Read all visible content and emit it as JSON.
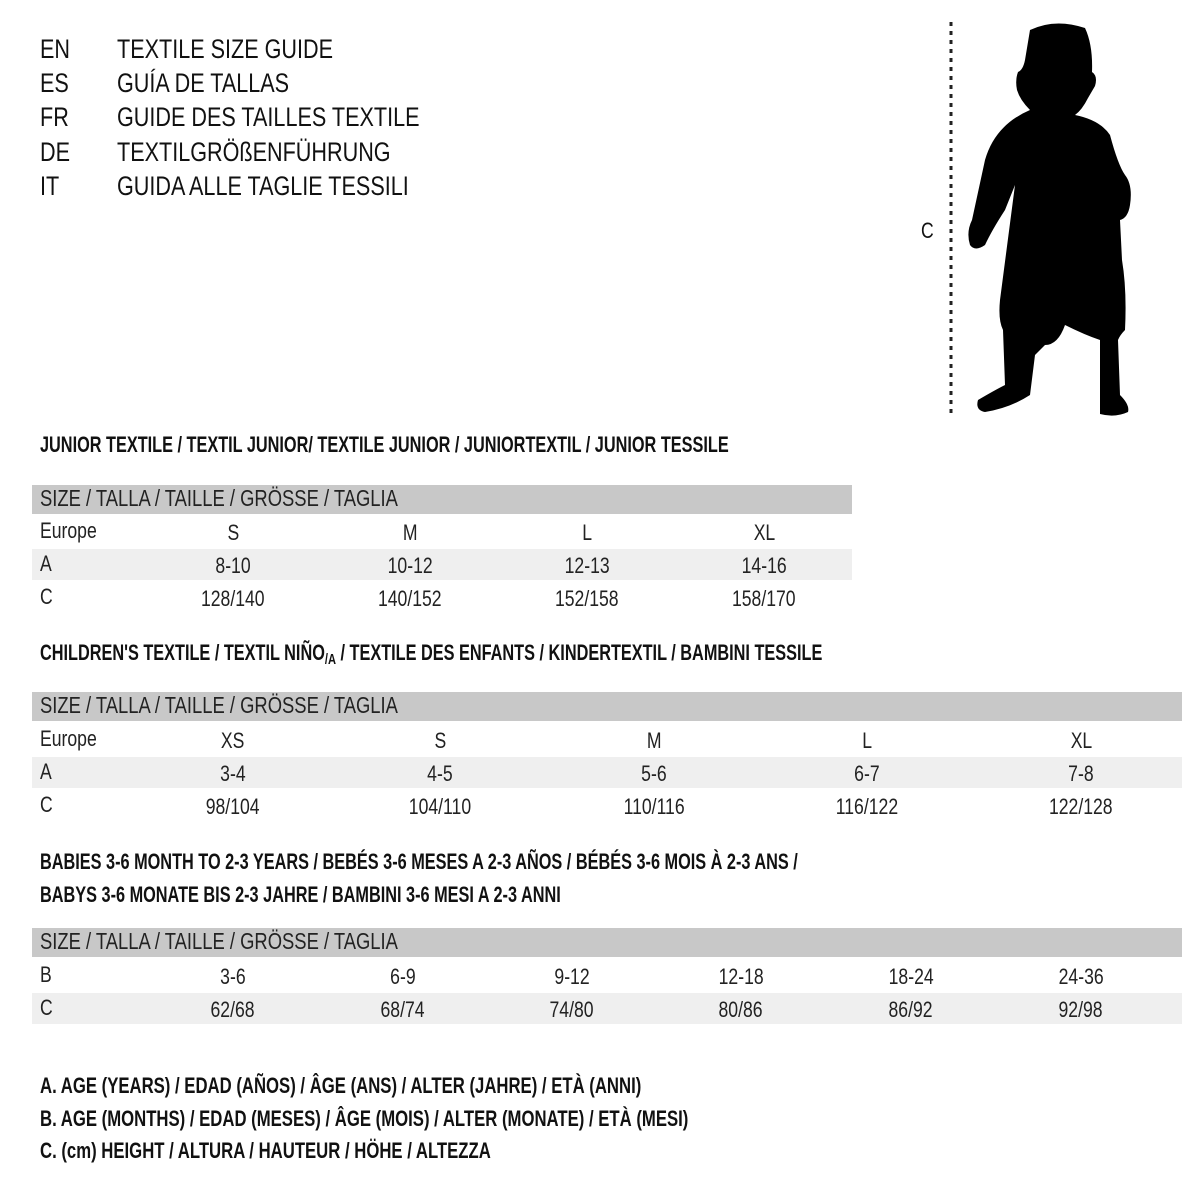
{
  "languages": [
    {
      "code": "EN",
      "title": "TEXTILE SIZE GUIDE"
    },
    {
      "code": "ES",
      "title": "GUÍA DE TALLAS"
    },
    {
      "code": "FR",
      "title": "GUIDE DES TAILLES TEXTILE"
    },
    {
      "code": "DE",
      "title": "TEXTILGRÖßENFÜHRUNG"
    },
    {
      "code": "IT",
      "title": "GUIDA ALLE TAGLIE TESSILI"
    }
  ],
  "figure": {
    "measure_label": "C",
    "icon": "child-silhouette"
  },
  "sections": [
    {
      "heading": "JUNIOR TEXTILE / TEXTIL JUNIOR/ TEXTILE JUNIOR / JUNIORTEXTIL / JUNIOR TESSILE",
      "header": "SIZE / TALLA / TAILLE / GRÖSSE / TAGLIA",
      "rows": [
        {
          "label": "Europe",
          "values": [
            "S",
            "M",
            "L",
            "XL"
          ]
        },
        {
          "label": "A",
          "values": [
            "8-10",
            "10-12",
            "12-13",
            "14-16"
          ]
        },
        {
          "label": "C",
          "values": [
            "128/140",
            "140/152",
            "152/158",
            "158/170"
          ]
        }
      ]
    },
    {
      "heading_main": "CHILDREN'S TEXTILE / TEXTIL NIÑO",
      "heading_sub": "/A",
      "heading_rest": " / TEXTILE DES ENFANTS / KINDERTEXTIL / BAMBINI TESSILE",
      "header": "SIZE / TALLA / TAILLE / GRÖSSE / TAGLIA",
      "rows": [
        {
          "label": "Europe",
          "values": [
            "XS",
            "S",
            "M",
            "L",
            "XL"
          ]
        },
        {
          "label": "A",
          "values": [
            "3-4",
            "4-5",
            "5-6",
            "6-7",
            "7-8"
          ]
        },
        {
          "label": "C",
          "values": [
            "98/104",
            "104/110",
            "110/116",
            "116/122",
            "122/128"
          ]
        }
      ]
    },
    {
      "heading_line1": "BABIES 3-6 MONTH TO 2-3 YEARS / BEBÉS 3-6 MESES A 2-3 AÑOS / BÉBÉS 3-6 MOIS À 2-3 ANS /",
      "heading_line2": "BABYS 3-6 MONATE BIS 2-3 JAHRE / BAMBINI 3-6 MESI A 2-3 ANNI",
      "header": "SIZE / TALLA / TAILLE / GRÖSSE / TAGLIA",
      "rows": [
        {
          "label": "B",
          "values": [
            "3-6",
            "6-9",
            "9-12",
            "12-18",
            "18-24",
            "24-36"
          ]
        },
        {
          "label": "C",
          "values": [
            "62/68",
            "68/74",
            "74/80",
            "80/86",
            "86/92",
            "92/98"
          ]
        }
      ]
    }
  ],
  "legend": [
    "A. AGE (YEARS) / EDAD (AÑOS) / ÂGE (ANS) / ALTER (JAHRE) / ETÀ (ANNI)",
    "B. AGE (MONTHS) / EDAD (MESES) / ÂGE (MOIS) / ALTER (MONATE) / ETÀ (MESI)",
    "C. (cm) HEIGHT / ALTURA / HAUTEUR / HÖHE / ALTEZZA"
  ],
  "colors": {
    "header_bar": "#c8c8c8",
    "band": "#efefef",
    "text": "#111111"
  }
}
